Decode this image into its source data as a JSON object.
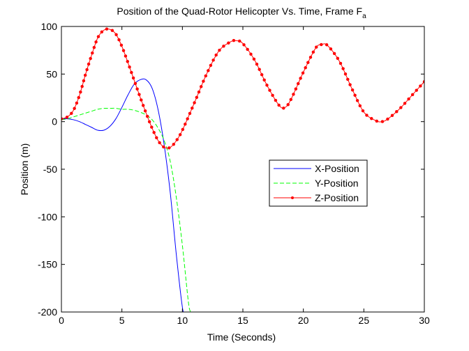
{
  "chart_data": {
    "type": "line",
    "title": "Position of the Quad-Rotor Helicopter Vs. Time, Frame F",
    "title_subscript": "a",
    "xlabel": "Time (Seconds)",
    "ylabel": "Position (m)",
    "xlim": [
      0,
      30
    ],
    "ylim": [
      -200,
      100
    ],
    "xticks": [
      0,
      5,
      10,
      15,
      20,
      25,
      30
    ],
    "xtick_labels": [
      "0",
      "5",
      "10",
      "15",
      "20",
      "25",
      "30"
    ],
    "yticks": [
      100,
      50,
      0,
      -50,
      -100,
      -150,
      -200
    ],
    "ytick_labels": [
      "100",
      "50",
      "0",
      "-50",
      "-100",
      "-150",
      "-200"
    ],
    "grid": false,
    "legend_position": "right-middle",
    "series": [
      {
        "name": "X-Position",
        "color": "#0000ff",
        "style": "solid",
        "marker": "none",
        "x": [
          0,
          0.5,
          1,
          1.5,
          2,
          2.5,
          3,
          3.5,
          4,
          4.5,
          5,
          5.5,
          6,
          6.5,
          7,
          7.5,
          8,
          8.5,
          9,
          9.5,
          10,
          10.2
        ],
        "y": [
          3,
          3,
          2,
          0,
          -3,
          -6,
          -9,
          -9,
          -5,
          3,
          15,
          28,
          39,
          44,
          44,
          35,
          12,
          -25,
          -75,
          -140,
          -195,
          -200
        ]
      },
      {
        "name": "Y-Position",
        "color": "#00ff00",
        "style": "dashed",
        "marker": "none",
        "x": [
          0,
          0.5,
          1,
          1.5,
          2,
          2.5,
          3,
          3.5,
          4,
          4.5,
          5,
          5.5,
          6,
          6.5,
          7,
          7.5,
          8,
          8.5,
          9,
          9.5,
          10,
          10.5,
          10.7
        ],
        "y": [
          2,
          3,
          5,
          7,
          9,
          11,
          13,
          14,
          14,
          14,
          13,
          13,
          12,
          10,
          7,
          2,
          -7,
          -20,
          -42,
          -80,
          -130,
          -190,
          -200
        ]
      },
      {
        "name": "Z-Position",
        "color": "#ff0000",
        "style": "solid",
        "marker": "dot",
        "x": [
          0,
          0.5,
          1,
          1.5,
          2,
          2.5,
          3,
          3.5,
          4,
          4.5,
          5,
          5.5,
          6,
          6.5,
          7,
          7.5,
          8,
          8.5,
          9,
          9.5,
          10,
          11,
          12,
          13,
          14,
          14.5,
          15,
          16,
          17,
          18,
          18.5,
          19,
          20,
          21,
          21.5,
          22,
          23,
          24,
          25,
          26,
          26.5,
          27,
          28,
          29,
          30
        ],
        "y": [
          3,
          5,
          12,
          28,
          50,
          70,
          88,
          96,
          97,
          92,
          79,
          62,
          44,
          26,
          9,
          -7,
          -20,
          -27,
          -27,
          -20,
          -9,
          20,
          50,
          74,
          84,
          85,
          82,
          64,
          38,
          17,
          15,
          24,
          52,
          77,
          81,
          80,
          63,
          35,
          10,
          1,
          0,
          3,
          14,
          28,
          42
        ]
      }
    ]
  }
}
